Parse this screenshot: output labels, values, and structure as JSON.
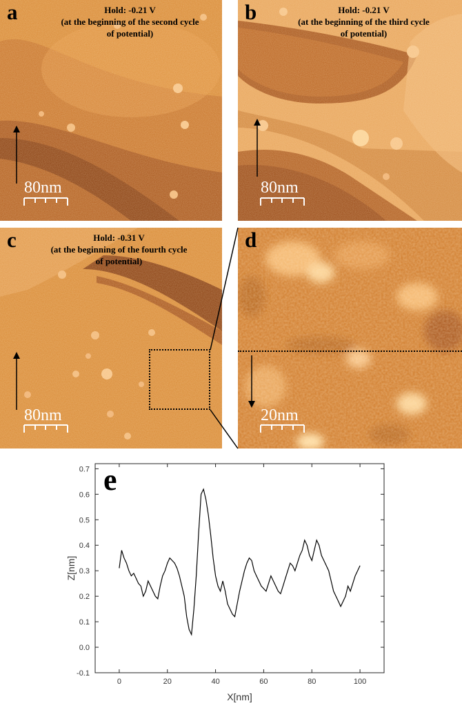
{
  "panels": {
    "a": {
      "letter": "a",
      "caption": [
        "Hold: -0.21 V",
        "(at the beginning of the second cycle",
        "of potential)"
      ],
      "scale_bar": "80nm",
      "arrow": "up"
    },
    "b": {
      "letter": "b",
      "caption": [
        "Hold: -0.21 V",
        "(at the beginning of the third cycle",
        "of potential)"
      ],
      "scale_bar": "80nm",
      "arrow": "up"
    },
    "c": {
      "letter": "c",
      "caption": [
        "Hold: -0.31 V",
        "(at the beginning of the fourth cycle",
        "of potential)"
      ],
      "scale_bar": "80nm",
      "arrow": "up"
    },
    "d": {
      "letter": "d",
      "scale_bar": "20nm",
      "arrow": "down"
    }
  },
  "colors": {
    "afm_dark": "#7a3608",
    "afm_mid": "#c8701c",
    "afm_light": "#f0b060",
    "afm_highlight": "#ffe0a8"
  },
  "chart_data": {
    "type": "line",
    "label": "e",
    "xlabel": "X[nm]",
    "ylabel": "Z[nm]",
    "xlim": [
      -10,
      110
    ],
    "ylim": [
      -0.1,
      0.72
    ],
    "xticks": [
      0,
      20,
      40,
      60,
      80,
      100
    ],
    "yticks": [
      -0.1,
      0.0,
      0.1,
      0.2,
      0.3,
      0.4,
      0.5,
      0.6,
      0.7
    ],
    "grid": false,
    "series": [
      {
        "x": [
          0,
          1,
          2,
          3,
          4,
          5,
          6,
          7,
          8,
          9,
          10,
          11,
          12,
          13,
          14,
          15,
          16,
          17,
          18,
          19,
          20,
          21,
          22,
          23,
          24,
          25,
          26,
          27,
          28,
          29,
          30,
          31,
          32,
          33,
          34,
          35,
          36,
          37,
          38,
          39,
          40,
          41,
          42,
          43,
          44,
          45,
          46,
          47,
          48,
          49,
          50,
          51,
          52,
          53,
          54,
          55,
          56,
          57,
          58,
          59,
          60,
          61,
          62,
          63,
          64,
          65,
          66,
          67,
          68,
          69,
          70,
          71,
          72,
          73,
          74,
          75,
          76,
          77,
          78,
          79,
          80,
          81,
          82,
          83,
          84,
          85,
          86,
          87,
          88,
          89,
          90,
          91,
          92,
          93,
          94,
          95,
          96,
          97,
          98,
          99,
          100
        ],
        "values": [
          0.31,
          0.38,
          0.35,
          0.33,
          0.3,
          0.28,
          0.29,
          0.27,
          0.25,
          0.24,
          0.2,
          0.22,
          0.26,
          0.24,
          0.22,
          0.2,
          0.19,
          0.24,
          0.28,
          0.3,
          0.33,
          0.35,
          0.34,
          0.33,
          0.31,
          0.28,
          0.24,
          0.2,
          0.12,
          0.07,
          0.05,
          0.15,
          0.28,
          0.45,
          0.6,
          0.62,
          0.58,
          0.52,
          0.44,
          0.35,
          0.28,
          0.24,
          0.22,
          0.26,
          0.22,
          0.17,
          0.15,
          0.13,
          0.12,
          0.17,
          0.22,
          0.26,
          0.3,
          0.33,
          0.35,
          0.34,
          0.3,
          0.28,
          0.26,
          0.24,
          0.23,
          0.22,
          0.25,
          0.28,
          0.26,
          0.24,
          0.22,
          0.21,
          0.24,
          0.27,
          0.3,
          0.33,
          0.32,
          0.3,
          0.33,
          0.36,
          0.38,
          0.42,
          0.4,
          0.36,
          0.34,
          0.38,
          0.42,
          0.4,
          0.36,
          0.34,
          0.32,
          0.3,
          0.26,
          0.22,
          0.2,
          0.18,
          0.16,
          0.18,
          0.2,
          0.24,
          0.22,
          0.25,
          0.28,
          0.3,
          0.32
        ]
      }
    ]
  }
}
